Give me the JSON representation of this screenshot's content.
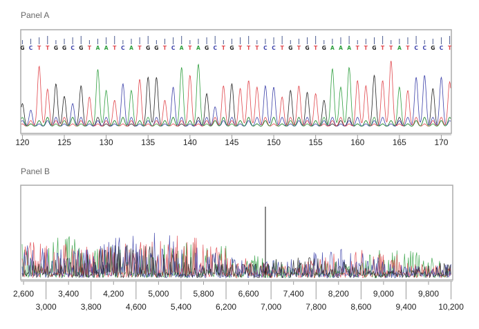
{
  "panels": [
    {
      "title": "Panel A"
    },
    {
      "title": "Panel B"
    }
  ],
  "chart_data": [
    {
      "type": "line",
      "subtype": "sequencing chromatogram",
      "title": "Panel A",
      "base_colors": {
        "A": "#2e9e3e",
        "C": "#3a3fa8",
        "G": "#222222",
        "T": "#e0454b"
      },
      "sequence": "GCTTGGCGTAATCATGGTCATAGCTGTTTCCTGTGTGAAATTGTTATCCGCT",
      "first_position": 120,
      "peak_heights": [
        0.35,
        0.25,
        0.92,
        0.57,
        0.65,
        0.46,
        0.35,
        0.62,
        0.45,
        0.87,
        0.55,
        0.4,
        0.65,
        0.55,
        0.72,
        0.75,
        0.75,
        0.4,
        0.6,
        0.9,
        0.78,
        0.95,
        0.5,
        0.3,
        0.62,
        0.65,
        0.58,
        0.7,
        0.6,
        0.62,
        0.6,
        0.45,
        0.55,
        0.62,
        0.52,
        0.5,
        0.4,
        0.88,
        0.6,
        0.9,
        0.7,
        0.62,
        0.78,
        0.7,
        1.0,
        0.6,
        0.55,
        0.75,
        0.78,
        0.58,
        0.75,
        0.68
      ],
      "x_ticks": [
        120,
        125,
        130,
        135,
        140,
        145,
        150,
        155,
        160,
        165,
        170
      ],
      "xlim": [
        119.8,
        171.2
      ]
    },
    {
      "type": "line",
      "subtype": "sequencing chromatogram overview",
      "title": "Panel B",
      "series_colors": [
        "#2e9e3e",
        "#e0454b",
        "#3a3fa8",
        "#222222"
      ],
      "x_ticks_top": [
        "2,600",
        "3,400",
        "4,200",
        "5,000",
        "5,800",
        "6,600",
        "7,400",
        "8,200",
        "9,000",
        "9,800"
      ],
      "x_ticks_bottom": [
        "3,000",
        "3,800",
        "4,600",
        "5,400",
        "6,200",
        "7,000",
        "7,800",
        "8,600",
        "9,400",
        "10,200"
      ],
      "xlim": [
        2550,
        10230
      ],
      "spike_position": 6900
    }
  ]
}
